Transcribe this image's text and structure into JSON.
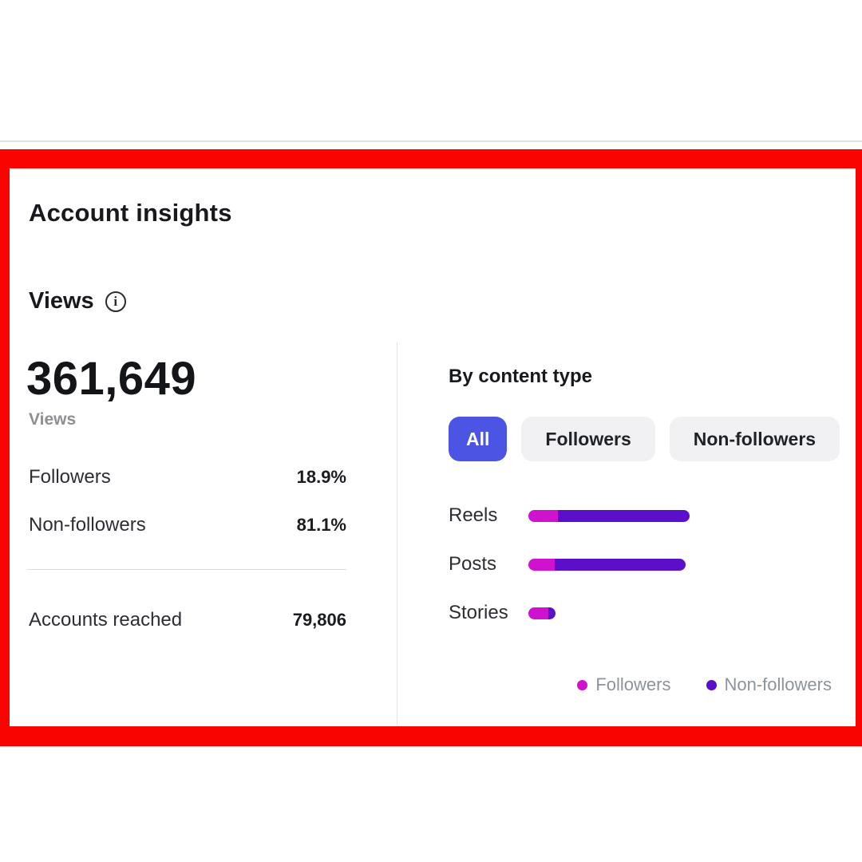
{
  "panel": {
    "title": "Account insights",
    "section_title": "Views",
    "info_icon_glyph": "i"
  },
  "summary": {
    "views_value": "361,649",
    "views_label": "Views",
    "breakdown": [
      {
        "label": "Followers",
        "value": "18.9%"
      },
      {
        "label": "Non-followers",
        "value": "81.1%"
      }
    ],
    "accounts_reached_label": "Accounts reached",
    "accounts_reached_value": "79,806"
  },
  "content_type": {
    "title": "By content type",
    "tabs": [
      {
        "label": "All",
        "active": true
      },
      {
        "label": "Followers",
        "active": false
      },
      {
        "label": "Non-followers",
        "active": false
      }
    ],
    "legend": [
      {
        "label": "Followers",
        "color": "#ce12ce"
      },
      {
        "label": "Non-followers",
        "color": "#5c0fca"
      }
    ]
  },
  "chart_data": {
    "type": "bar",
    "orientation": "horizontal",
    "stacked": true,
    "title": "By content type",
    "categories": [
      "Reels",
      "Posts",
      "Stories"
    ],
    "series": [
      {
        "name": "Followers",
        "color": "#ce12ce",
        "values": [
          18.4,
          16.4,
          12.4
        ]
      },
      {
        "name": "Non-followers",
        "color": "#5c0fca",
        "values": [
          81.6,
          81.1,
          4.5
        ]
      }
    ],
    "units": "percent of max bar width (longest bar = 100)",
    "axis_labels_visible": false,
    "grid": false,
    "legend_position": "bottom-right"
  },
  "colors": {
    "frame_red": "#f90400",
    "active_tab": "#4c54e4",
    "inactive_tab_bg": "#f1f1f4",
    "followers_magenta": "#ce12ce",
    "non_followers_purple": "#5c0fca",
    "muted_text": "#8e8e93",
    "divider": "#d9dadc"
  }
}
